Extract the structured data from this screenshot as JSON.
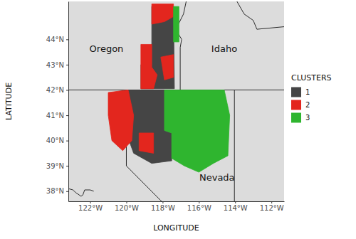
{
  "chart_data": {
    "type": "map",
    "xlabel": "LONGITUDE",
    "ylabel": "LATITUDE",
    "legend_title": "CLUSTERS",
    "legend": "right",
    "xlim": [
      -123.2,
      -111.3
    ],
    "ylim": [
      37.6,
      45.5
    ],
    "xticks": [
      {
        "value": -122,
        "label": "122°W"
      },
      {
        "value": -120,
        "label": "120°W"
      },
      {
        "value": -118,
        "label": "118°W"
      },
      {
        "value": -116,
        "label": "116°W"
      },
      {
        "value": -114,
        "label": "114°W"
      },
      {
        "value": -112,
        "label": "112°W"
      }
    ],
    "yticks": [
      {
        "value": 38,
        "label": "38°N"
      },
      {
        "value": 39,
        "label": "39°N"
      },
      {
        "value": 40,
        "label": "40°N"
      },
      {
        "value": 41,
        "label": "41°N"
      },
      {
        "value": 42,
        "label": "42°N"
      },
      {
        "value": 43,
        "label": "43°N"
      },
      {
        "value": 44,
        "label": "44°N"
      }
    ],
    "annotations": [
      {
        "text": "Oregon",
        "x": -121.1,
        "y": 43.6
      },
      {
        "text": "Idaho",
        "x": -114.6,
        "y": 43.6
      },
      {
        "text": "Nevada",
        "x": -115.0,
        "y": 38.5
      }
    ],
    "boundaries": [
      [
        [
          -123.2,
          42
        ],
        [
          -111.3,
          42
        ]
      ],
      [
        [
          -117.03,
          42
        ],
        [
          -117.03,
          43.68
        ],
        [
          -116.95,
          44.0
        ],
        [
          -117.2,
          44.3
        ],
        [
          -117.2,
          44.5
        ],
        [
          -116.85,
          45.0
        ],
        [
          -116.7,
          45.5
        ]
      ],
      [
        [
          -120,
          42
        ],
        [
          -120,
          39
        ],
        [
          -118.06,
          37.6
        ]
      ],
      [
        [
          -114.04,
          42
        ],
        [
          -114.04,
          37.6
        ]
      ],
      [
        [
          -111.3,
          44.5
        ],
        [
          -112.8,
          44.4
        ],
        [
          -113.0,
          44.75
        ],
        [
          -113.5,
          45.0
        ],
        [
          -113.9,
          45.5
        ]
      ],
      [
        [
          -123.2,
          38.1
        ],
        [
          -122.95,
          38.05
        ],
        [
          -122.8,
          37.95
        ],
        [
          -122.5,
          37.8
        ],
        [
          -122.4,
          37.85
        ],
        [
          -122.3,
          38.05
        ],
        [
          -122.0,
          38.05
        ],
        [
          -121.8,
          38.0
        ]
      ]
    ],
    "series": [
      {
        "name": "1",
        "color": "#454545",
        "polygons": [
          [
            [
              -118.6,
              45.3
            ],
            [
              -117.4,
              45.3
            ],
            [
              -117.35,
              42.05
            ],
            [
              -119.2,
              42.05
            ],
            [
              -119.2,
              43.0
            ],
            [
              -118.6,
              43.0
            ]
          ],
          [
            [
              -120.1,
              42.0
            ],
            [
              -117.9,
              42.0
            ],
            [
              -117.9,
              40.4
            ],
            [
              -117.5,
              40.3
            ],
            [
              -117.5,
              39.2
            ],
            [
              -118.6,
              39.1
            ],
            [
              -119.6,
              39.5
            ],
            [
              -120.1,
              40.5
            ]
          ]
        ]
      },
      {
        "name": "2",
        "color": "#e3261e",
        "polygons": [
          [
            [
              -119.2,
              43.8
            ],
            [
              -118.6,
              43.8
            ],
            [
              -118.6,
              42.9
            ],
            [
              -118.3,
              42.6
            ],
            [
              -118.5,
              42.05
            ],
            [
              -119.2,
              42.05
            ]
          ],
          [
            [
              -118.6,
              45.4
            ],
            [
              -117.4,
              45.4
            ],
            [
              -117.4,
              44.9
            ],
            [
              -117.9,
              44.7
            ],
            [
              -118.6,
              44.6
            ]
          ],
          [
            [
              -118.1,
              43.3
            ],
            [
              -117.4,
              43.4
            ],
            [
              -117.4,
              42.5
            ],
            [
              -117.9,
              42.4
            ]
          ],
          [
            [
              -121.0,
              41.9
            ],
            [
              -119.9,
              42.0
            ],
            [
              -119.6,
              41.0
            ],
            [
              -119.7,
              40.0
            ],
            [
              -120.2,
              39.6
            ],
            [
              -120.8,
              40.0
            ],
            [
              -121.0,
              41.0
            ]
          ],
          [
            [
              -119.3,
              40.3
            ],
            [
              -118.5,
              40.3
            ],
            [
              -118.5,
              39.5
            ],
            [
              -119.3,
              39.6
            ]
          ]
        ]
      },
      {
        "name": "3",
        "color": "#2fb52f",
        "polygons": [
          [
            [
              -117.4,
              45.3
            ],
            [
              -117.1,
              45.3
            ],
            [
              -117.1,
              43.9
            ],
            [
              -117.4,
              43.9
            ]
          ],
          [
            [
              -117.9,
              42.0
            ],
            [
              -114.6,
              42.0
            ],
            [
              -114.3,
              41.0
            ],
            [
              -114.4,
              39.4
            ],
            [
              -115.2,
              39.1
            ],
            [
              -116.0,
              38.75
            ],
            [
              -116.8,
              39.0
            ],
            [
              -117.5,
              39.3
            ],
            [
              -117.5,
              40.3
            ],
            [
              -117.9,
              40.4
            ]
          ]
        ]
      }
    ]
  }
}
